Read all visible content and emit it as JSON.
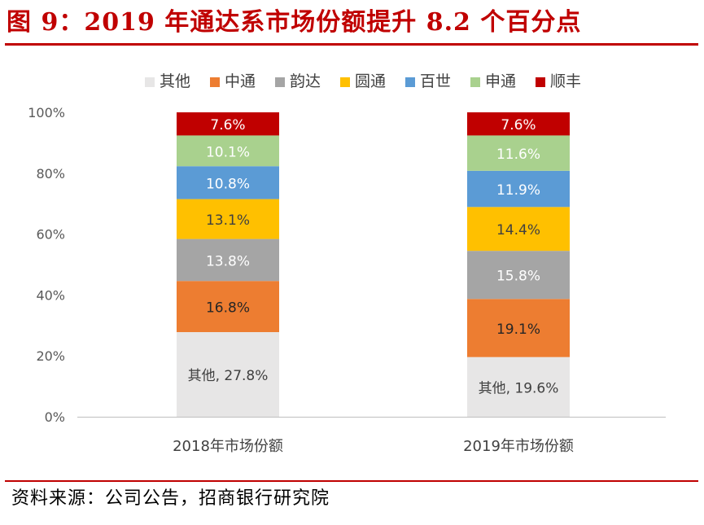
{
  "header": {
    "title": "图 9：2019 年通达系市场份额提升 8.2 个百分点"
  },
  "footer": {
    "source": "资料来源：公司公告，招商银行研究院"
  },
  "chart_data": {
    "type": "bar",
    "stacked": true,
    "categories": [
      "2018年市场份额",
      "2019年市场份额"
    ],
    "series": [
      {
        "name": "其他",
        "values": [
          27.8,
          19.6
        ],
        "labels": [
          "其他, 27.8%",
          "其他, 19.6%"
        ],
        "color": "#e7e6e6"
      },
      {
        "name": "中通",
        "values": [
          16.8,
          19.1
        ],
        "labels": [
          "16.8%",
          "19.1%"
        ],
        "color": "#ed7d31"
      },
      {
        "name": "韵达",
        "values": [
          13.8,
          15.8
        ],
        "labels": [
          "13.8%",
          "15.8%"
        ],
        "color": "#a5a5a5"
      },
      {
        "name": "圆通",
        "values": [
          13.1,
          14.4
        ],
        "labels": [
          "13.1%",
          "14.4%"
        ],
        "color": "#ffc000"
      },
      {
        "name": "百世",
        "values": [
          10.8,
          11.9
        ],
        "labels": [
          "10.8%",
          "11.9%"
        ],
        "color": "#5b9bd5"
      },
      {
        "name": "申通",
        "values": [
          10.1,
          11.6
        ],
        "labels": [
          "10.1%",
          "11.6%"
        ],
        "color": "#a9d18e"
      },
      {
        "name": "顺丰",
        "values": [
          7.6,
          7.6
        ],
        "labels": [
          "7.6%",
          "7.6%"
        ],
        "color": "#c00000"
      }
    ],
    "ylim": [
      0,
      100
    ],
    "yticks": [
      "0%",
      "20%",
      "40%",
      "60%",
      "80%",
      "100%"
    ],
    "ytick_values": [
      0,
      20,
      40,
      60,
      80,
      100
    ],
    "legend_position": "top",
    "grid": false
  }
}
